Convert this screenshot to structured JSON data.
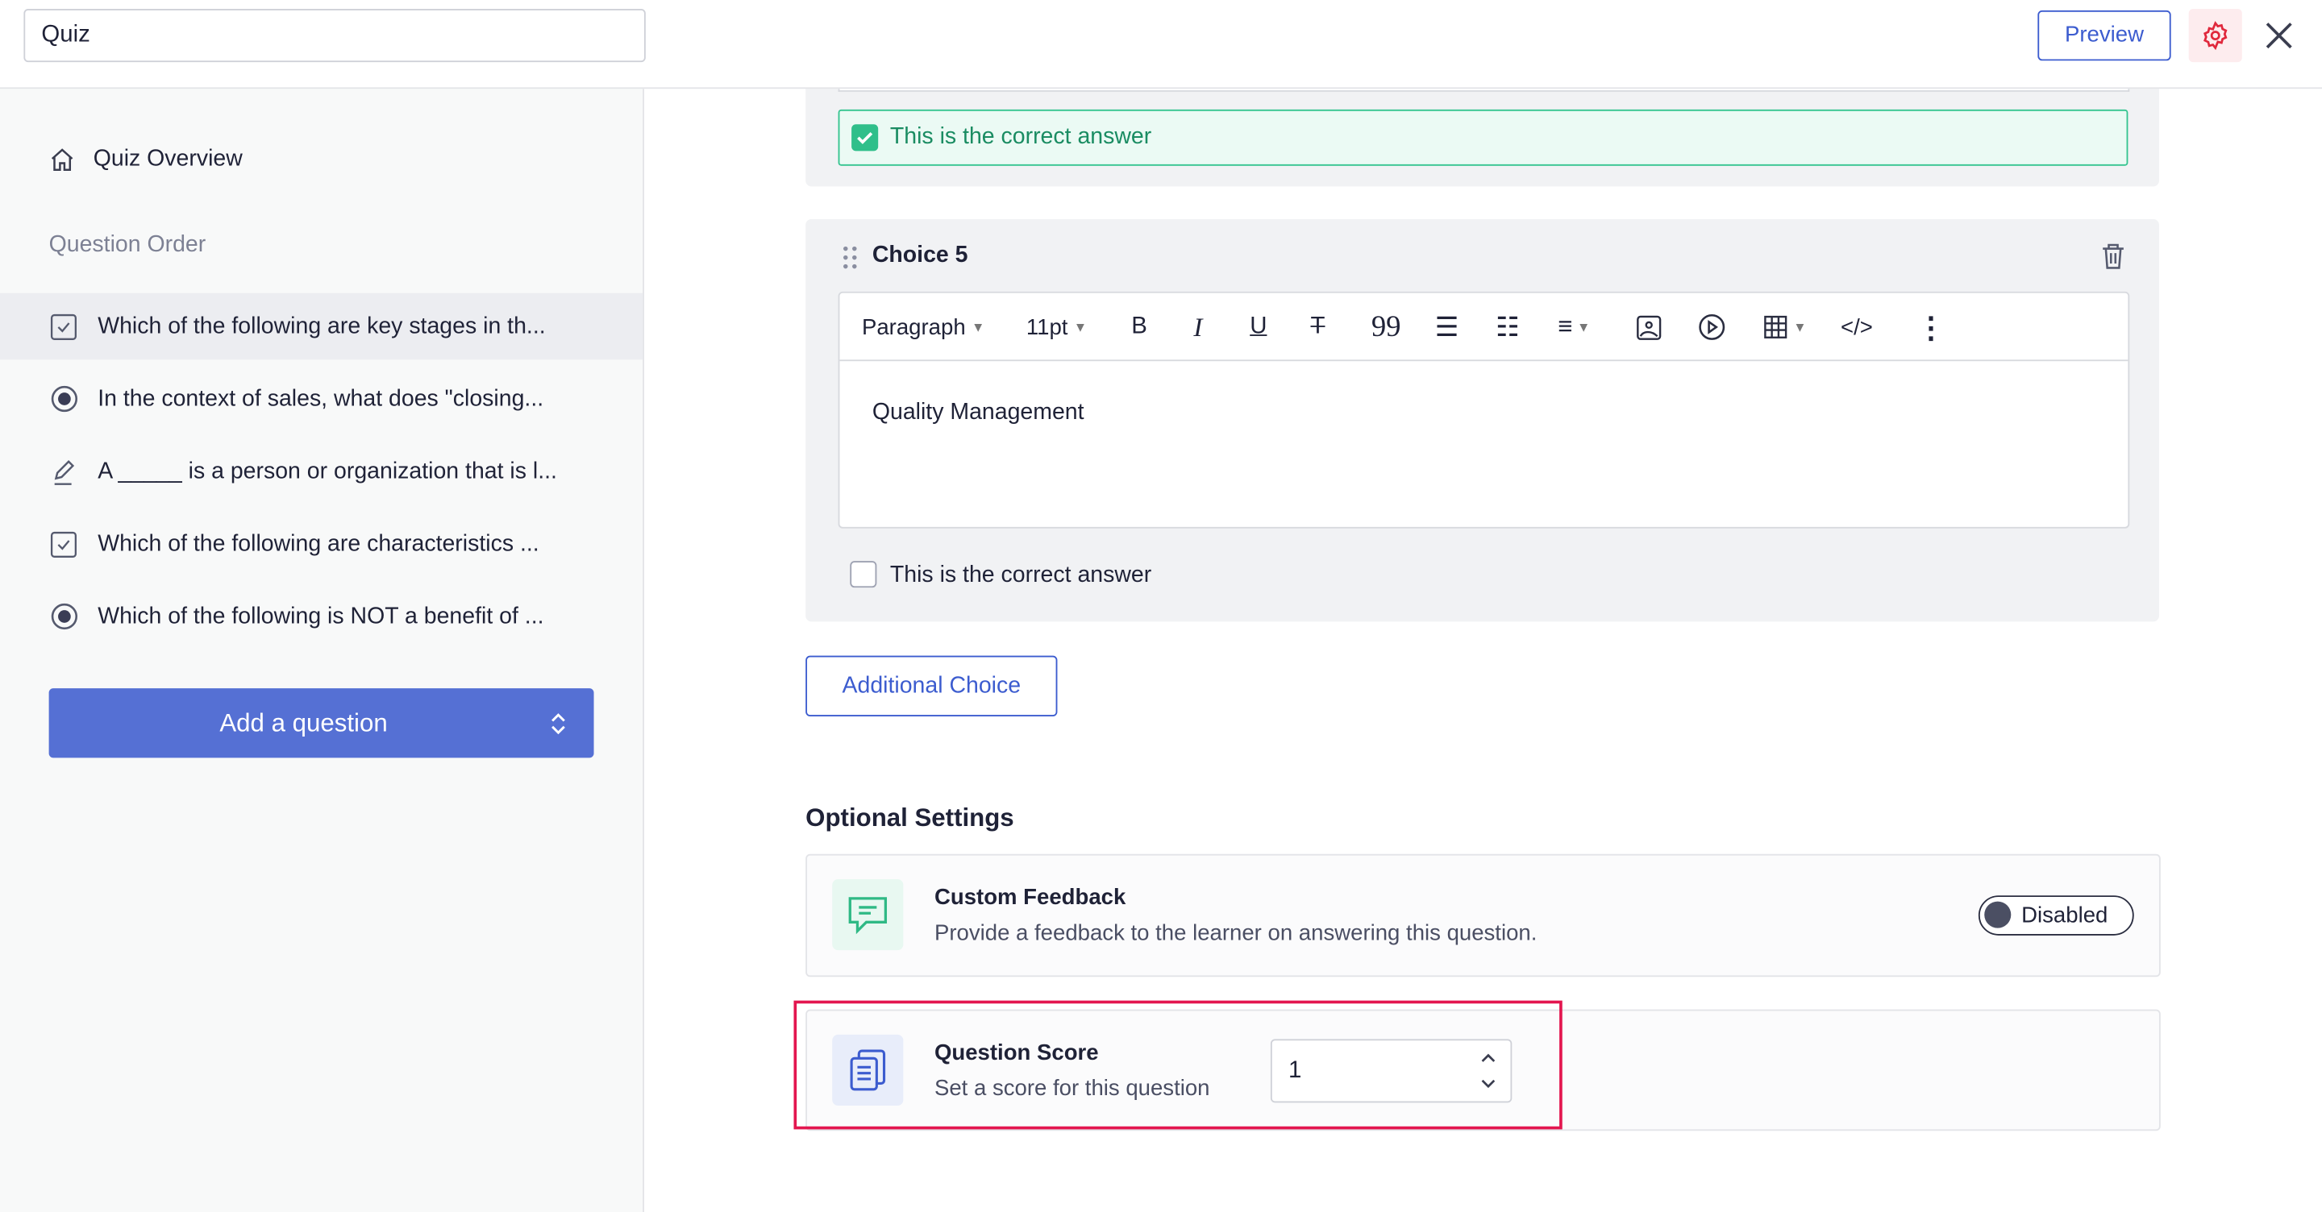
{
  "header": {
    "quiz_title": "Quiz",
    "preview_label": "Preview",
    "settings_icon": "gear-icon",
    "close_icon": "close-icon",
    "accent": "#3c5ccf"
  },
  "sidebar": {
    "overview_label": "Quiz Overview",
    "section_label": "Question Order",
    "questions": [
      {
        "type": "checkbox",
        "label": "Which of the following are key stages in th..."
      },
      {
        "type": "radio",
        "label": "In the context of sales, what does \"closing..."
      },
      {
        "type": "fill-blank",
        "label": "A _____ is a person or organization that is l..."
      },
      {
        "type": "checkbox",
        "label": "Which of the following are characteristics ..."
      },
      {
        "type": "radio",
        "label": "Which of the following is NOT a benefit of ..."
      }
    ],
    "selected_index": 0,
    "add_question_label": "Add a question"
  },
  "main": {
    "prev_choice": {
      "correct_label": "This is the correct answer",
      "correct": true
    },
    "choice5": {
      "title": "Choice 5",
      "toolbar": {
        "block_format": "Paragraph",
        "font_size": "11pt"
      },
      "content": "Quality Management",
      "correct_label": "This is the correct answer",
      "correct": false
    },
    "additional_choice_label": "Additional Choice",
    "optional_settings_title": "Optional Settings",
    "custom_feedback": {
      "title": "Custom Feedback",
      "description": "Provide a feedback to the learner on answering this question.",
      "toggle_label": "Disabled",
      "enabled": false
    },
    "question_score": {
      "title": "Question Score",
      "description": "Set a score for this question",
      "value": "1"
    }
  }
}
